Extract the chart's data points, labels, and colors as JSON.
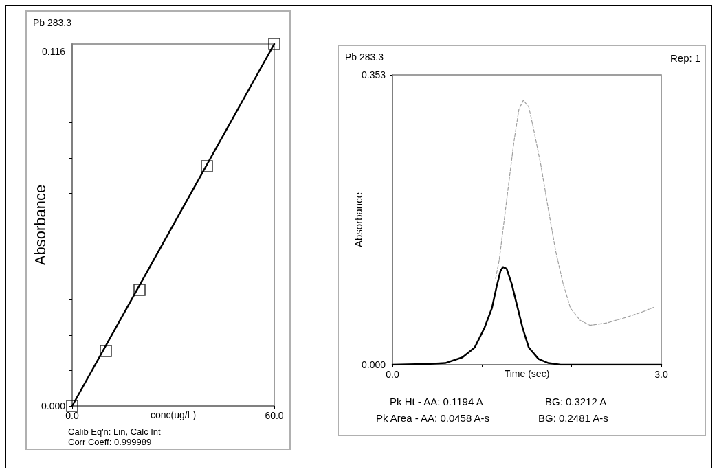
{
  "chart_data": [
    {
      "type": "scatter",
      "title": "Pb 283.3",
      "xlabel": "conc(ug/L)",
      "ylabel": "Absorbance",
      "xlim": [
        0,
        60
      ],
      "ylim": [
        0,
        0.1185
      ],
      "xticks": [
        {
          "value": 0,
          "label": "0.0"
        },
        {
          "value": 60,
          "label": "60.0"
        }
      ],
      "yticks": [
        {
          "value": 0,
          "label": "0.000"
        },
        {
          "value": 0.0116,
          "label": null
        },
        {
          "value": 0.0232,
          "label": null
        },
        {
          "value": 0.0348,
          "label": null
        },
        {
          "value": 0.0464,
          "label": null
        },
        {
          "value": 0.058,
          "label": null
        },
        {
          "value": 0.0696,
          "label": null
        },
        {
          "value": 0.0812,
          "label": null
        },
        {
          "value": 0.0928,
          "label": null
        },
        {
          "value": 0.1044,
          "label": null
        },
        {
          "value": 0.116,
          "label": "0.116"
        }
      ],
      "series": [
        {
          "color": "#000000",
          "marker": "square",
          "x": [
            0,
            10,
            20,
            40,
            60
          ],
          "values": [
            0,
            0.018,
            0.038,
            0.0785,
            0.1185
          ]
        },
        {
          "type": "line",
          "color": "#000000",
          "marker": "none",
          "line_style": "solid",
          "x": [
            0,
            60
          ],
          "values": [
            0,
            0.1185
          ]
        }
      ],
      "annotations": [
        "Calib Eq'n: Lin, Calc Int",
        "Corr Coeff: 0.999989"
      ]
    },
    {
      "type": "line",
      "title": "Pb 283.3",
      "xlabel": "Time (sec)",
      "ylabel": "Absorbance",
      "xlim": [
        0,
        3
      ],
      "ylim": [
        0,
        0.353
      ],
      "xticks": [
        {
          "value": 0,
          "label": "0.0"
        },
        {
          "value": 1,
          "label": null
        },
        {
          "value": 2,
          "label": null
        },
        {
          "value": 3,
          "label": "3.0"
        }
      ],
      "yticks": [
        {
          "value": 0,
          "label": "0.000"
        },
        {
          "value": 0.353,
          "label": "0.353"
        }
      ],
      "series": [
        {
          "color": "#000000",
          "marker": "none",
          "line_style": "solid",
          "x": [
            0,
            0.425,
            0.589,
            0.781,
            0.918,
            1.027,
            1.11,
            1.164,
            1.205,
            1.233,
            1.274,
            1.329,
            1.384,
            1.452,
            1.521,
            1.63,
            1.74,
            1.877,
            3
          ],
          "values": [
            0,
            0.001,
            0.002,
            0.009,
            0.021,
            0.045,
            0.069,
            0.096,
            0.114,
            0.119,
            0.117,
            0.099,
            0.075,
            0.045,
            0.021,
            0.007,
            0.002,
            0,
            0
          ]
        },
        {
          "color": "#a0a0a0",
          "marker": "none",
          "line_style": "dashed",
          "x": [
            1.151,
            1.192,
            1.247,
            1.301,
            1.356,
            1.411,
            1.46,
            1.521,
            1.575,
            1.658,
            1.74,
            1.822,
            1.904,
            1.986,
            2.096,
            2.205,
            2.397,
            2.616,
            2.781,
            2.918
          ],
          "values": [
            0.105,
            0.128,
            0.176,
            0.224,
            0.272,
            0.311,
            0.322,
            0.314,
            0.287,
            0.242,
            0.189,
            0.138,
            0.099,
            0.069,
            0.054,
            0.048,
            0.051,
            0.058,
            0.064,
            0.07
          ]
        }
      ],
      "annotations": [
        "Rep: 1",
        "Pk Ht - AA: 0.1194 A",
        "BG: 0.3212 A",
        "Pk Area - AA: 0.0458 A-s",
        "BG: 0.2481 A-s"
      ]
    }
  ]
}
